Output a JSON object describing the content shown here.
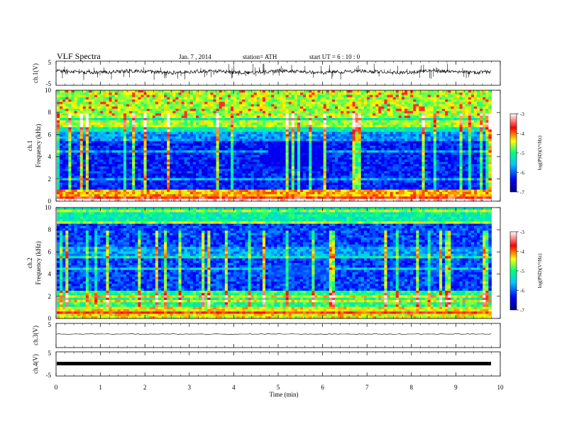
{
  "header": {
    "title": "VLF Spectra",
    "date": "Jan. 7 , 2014",
    "station": "station= ATH",
    "start": "start UT = 6 : 10 : 0"
  },
  "chart_data": {
    "type": "heatmap",
    "xlabel": "Time (min)",
    "xlim": [
      0,
      10
    ],
    "x_ticks": [
      "0",
      "1",
      "2",
      "3",
      "4",
      "5",
      "6",
      "7",
      "8",
      "9",
      "10"
    ],
    "data_end_min": 9.8,
    "panels": [
      {
        "id": "ch1-waveform",
        "ylabel": "ch.1(V)",
        "ylim": [
          -5,
          5
        ],
        "y_ticks": [
          "5",
          "-5"
        ]
      },
      {
        "id": "ch1-spectrogram",
        "ylabel_top": "ch.1",
        "ylabel": "Frequency (kHz)",
        "ylim": [
          0,
          10
        ],
        "y_ticks": [
          "0",
          "2",
          "4",
          "6",
          "8",
          "10"
        ],
        "colorbar": {
          "label": "log(PSD)(V²/Hz)",
          "range": [
            -7,
            -3
          ],
          "ticks": [
            "-3",
            "-4",
            "-5",
            "-6",
            "-7"
          ],
          "colors": [
            "#000080",
            "#0000ff",
            "#00c8ff",
            "#00ff80",
            "#ffff00",
            "#ff0000",
            "#ffffff"
          ]
        }
      },
      {
        "id": "ch2-spectrogram",
        "ylabel_top": "ch.2",
        "ylabel": "Frequency (kHz)",
        "ylim": [
          0,
          10
        ],
        "y_ticks": [
          "0",
          "2",
          "4",
          "6",
          "8",
          "10"
        ],
        "colorbar": {
          "label": "log(PSD)(V²/Hz)",
          "range": [
            -7,
            -3
          ],
          "ticks": [
            "-3",
            "-4",
            "-5",
            "-6",
            "-7"
          ],
          "colors": [
            "#000080",
            "#0000ff",
            "#00c8ff",
            "#00ff80",
            "#ffff00",
            "#ff0000",
            "#ffffff"
          ]
        }
      },
      {
        "id": "ch3-waveform",
        "ylabel": "ch.3(V)",
        "ylim": [
          -5,
          5
        ],
        "y_ticks": [
          "5"
        ]
      },
      {
        "id": "ch4-waveform",
        "ylabel": "ch.4(V)",
        "ylim": [
          -5,
          5
        ],
        "y_ticks": [
          "5",
          "-5"
        ]
      }
    ]
  }
}
